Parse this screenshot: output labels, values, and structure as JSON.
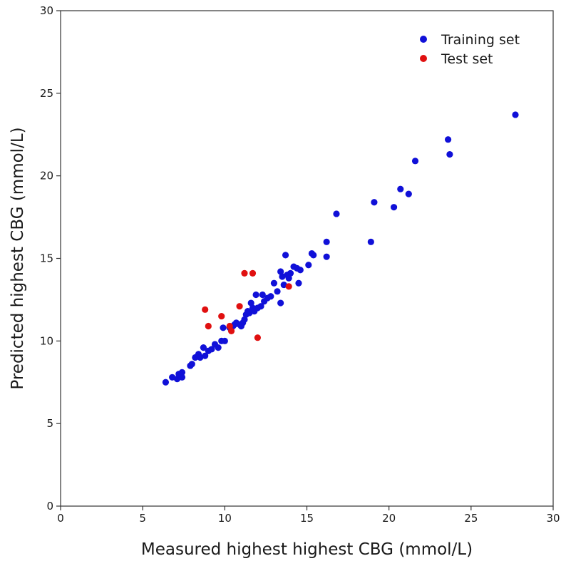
{
  "chart_data": {
    "type": "scatter",
    "title": "",
    "xlabel": "Measured highest highest CBG (mmol/L)",
    "ylabel": "Predicted highest CBG (mmol/L)",
    "xlim": [
      0,
      30
    ],
    "ylim": [
      0,
      30
    ],
    "xticks": [
      0,
      5,
      10,
      15,
      20,
      25,
      30
    ],
    "yticks": [
      0,
      5,
      10,
      15,
      20,
      25,
      30
    ],
    "grid": false,
    "legend_position": "top-right",
    "series": [
      {
        "name": "Training set",
        "color": "#1010d8",
        "points": [
          [
            6.4,
            7.5
          ],
          [
            6.8,
            7.8
          ],
          [
            7.1,
            7.7
          ],
          [
            7.3,
            7.9
          ],
          [
            7.2,
            8.0
          ],
          [
            7.4,
            8.1
          ],
          [
            7.4,
            7.8
          ],
          [
            7.9,
            8.5
          ],
          [
            8.0,
            8.6
          ],
          [
            8.2,
            9.0
          ],
          [
            8.4,
            9.2
          ],
          [
            8.5,
            9.0
          ],
          [
            8.7,
            9.6
          ],
          [
            8.8,
            9.1
          ],
          [
            9.0,
            9.4
          ],
          [
            9.2,
            9.5
          ],
          [
            9.4,
            9.8
          ],
          [
            9.6,
            9.6
          ],
          [
            9.8,
            10.0
          ],
          [
            10.0,
            10.0
          ],
          [
            9.9,
            10.8
          ],
          [
            10.3,
            10.8
          ],
          [
            10.5,
            10.9
          ],
          [
            10.6,
            11.0
          ],
          [
            10.7,
            11.1
          ],
          [
            10.9,
            11.0
          ],
          [
            11.0,
            10.9
          ],
          [
            11.1,
            11.1
          ],
          [
            11.2,
            11.3
          ],
          [
            11.3,
            11.6
          ],
          [
            11.4,
            11.8
          ],
          [
            11.5,
            11.7
          ],
          [
            11.6,
            12.3
          ],
          [
            11.7,
            12.0
          ],
          [
            11.8,
            11.8
          ],
          [
            11.9,
            12.8
          ],
          [
            12.0,
            12.0
          ],
          [
            12.2,
            12.1
          ],
          [
            12.3,
            12.8
          ],
          [
            12.4,
            12.4
          ],
          [
            12.6,
            12.6
          ],
          [
            12.8,
            12.7
          ],
          [
            13.0,
            13.5
          ],
          [
            13.2,
            13.0
          ],
          [
            13.4,
            12.3
          ],
          [
            13.4,
            14.2
          ],
          [
            13.5,
            13.9
          ],
          [
            13.6,
            13.4
          ],
          [
            13.7,
            15.2
          ],
          [
            13.8,
            14.0
          ],
          [
            13.9,
            13.8
          ],
          [
            14.0,
            14.1
          ],
          [
            14.2,
            14.5
          ],
          [
            14.4,
            14.4
          ],
          [
            14.5,
            13.5
          ],
          [
            14.6,
            14.3
          ],
          [
            15.1,
            14.6
          ],
          [
            15.3,
            15.3
          ],
          [
            15.4,
            15.2
          ],
          [
            16.2,
            16.0
          ],
          [
            16.2,
            15.1
          ],
          [
            16.8,
            17.7
          ],
          [
            18.9,
            16.0
          ],
          [
            19.1,
            18.4
          ],
          [
            20.3,
            18.1
          ],
          [
            20.7,
            19.2
          ],
          [
            21.2,
            18.9
          ],
          [
            21.6,
            20.9
          ],
          [
            23.6,
            22.2
          ],
          [
            23.7,
            21.3
          ],
          [
            27.7,
            23.7
          ]
        ]
      },
      {
        "name": "Test set",
        "color": "#e01010",
        "points": [
          [
            8.8,
            11.9
          ],
          [
            9.0,
            10.9
          ],
          [
            9.8,
            11.5
          ],
          [
            10.3,
            10.9
          ],
          [
            10.4,
            10.6
          ],
          [
            10.9,
            12.1
          ],
          [
            11.2,
            14.1
          ],
          [
            11.7,
            14.1
          ],
          [
            12.0,
            10.2
          ],
          [
            13.9,
            13.3
          ]
        ]
      }
    ]
  }
}
